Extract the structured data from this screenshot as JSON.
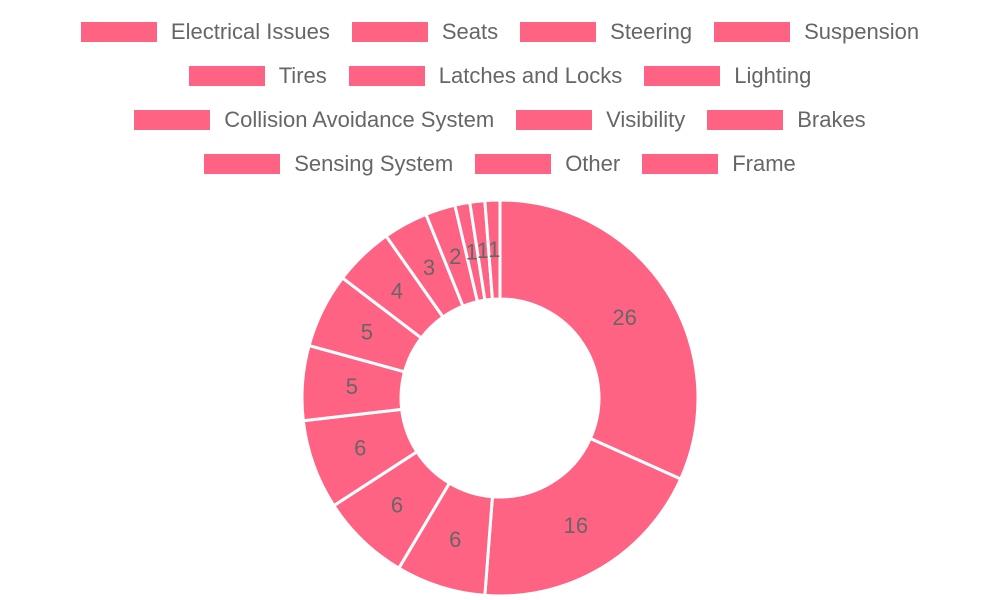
{
  "chart_data": {
    "type": "doughnut",
    "categories": [
      "Electrical Issues",
      "Seats",
      "Steering",
      "Suspension",
      "Tires",
      "Latches and Locks",
      "Lighting",
      "Collision Avoidance System",
      "Visibility",
      "Brakes",
      "Sensing System",
      "Other",
      "Frame"
    ],
    "values": [
      26,
      16,
      6,
      6,
      6,
      5,
      5,
      4,
      3,
      2,
      1,
      1,
      1
    ],
    "color": "#ff6384",
    "border_color": "#ffffff",
    "label_color": "#666666",
    "legend": "top"
  }
}
